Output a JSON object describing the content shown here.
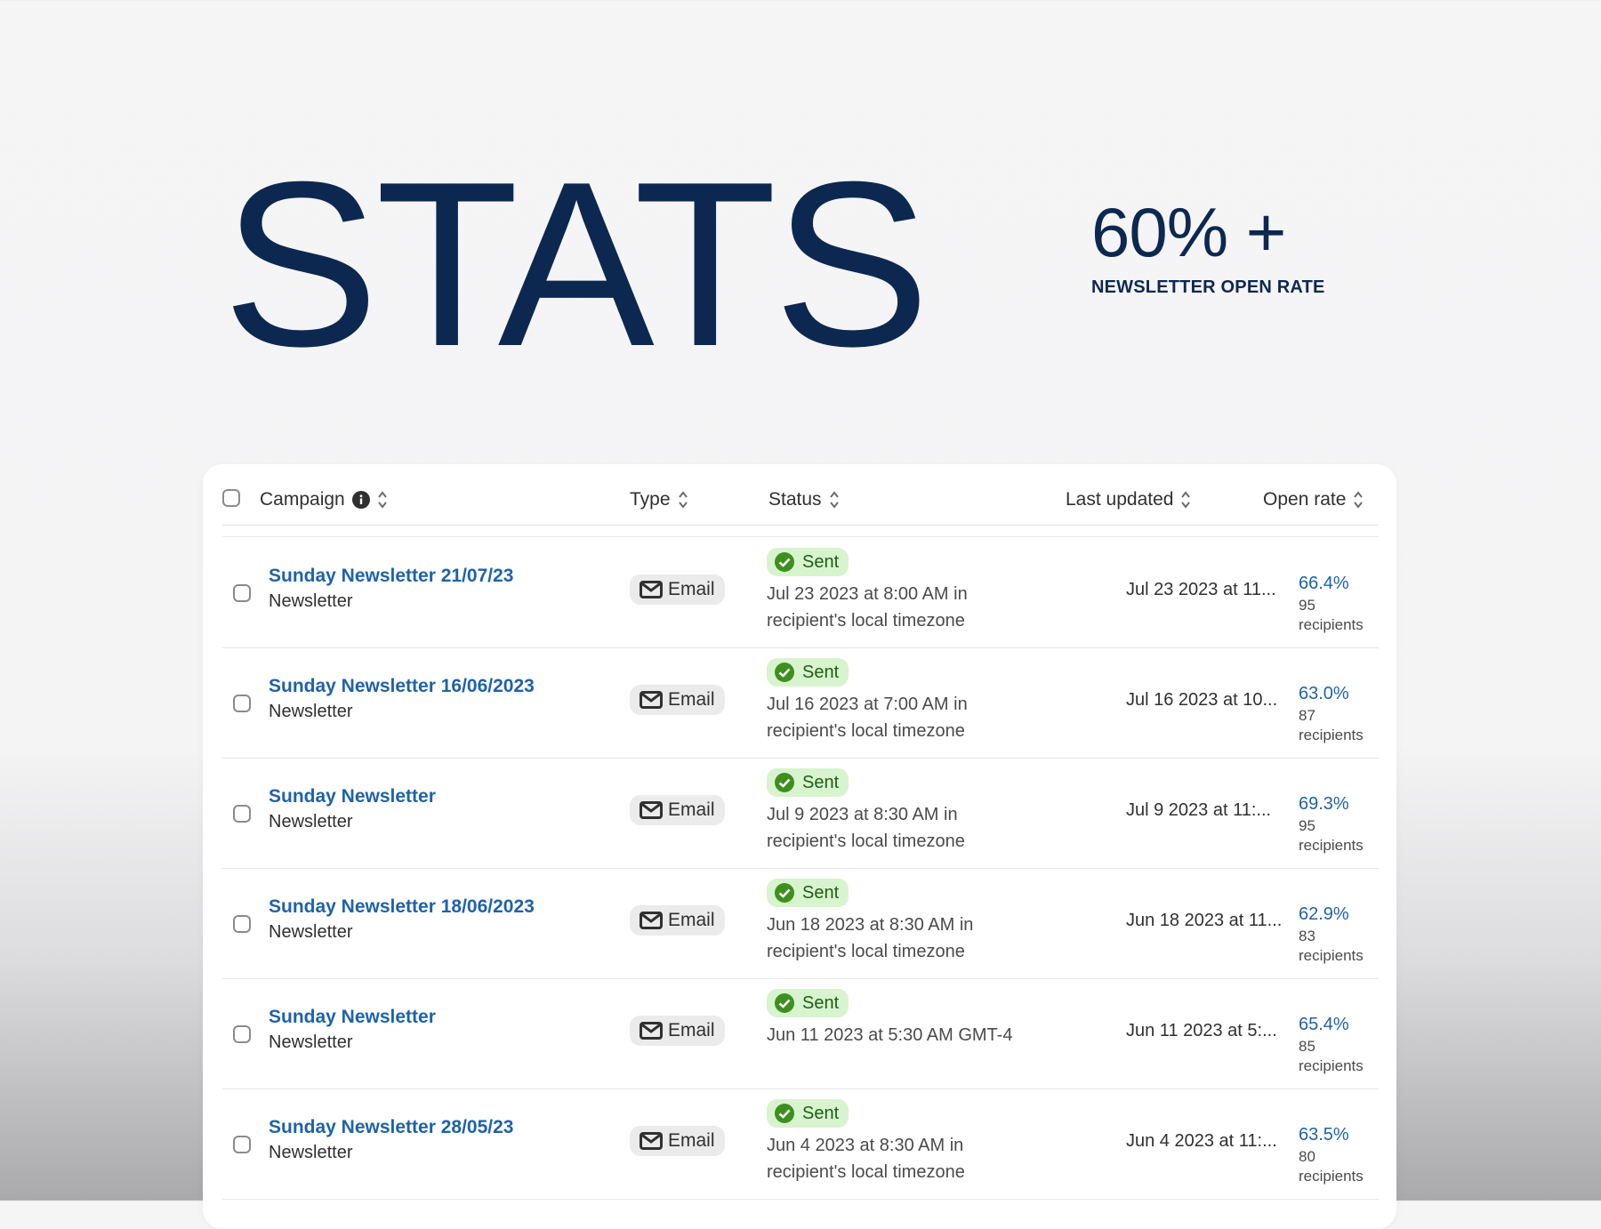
{
  "hero": {
    "title": "STATS"
  },
  "stat": {
    "value": "60% +",
    "label": "NEWSLETTER OPEN RATE"
  },
  "table": {
    "headers": {
      "campaign": "Campaign",
      "type": "Type",
      "status": "Status",
      "last_updated": "Last updated",
      "open_rate": "Open rate"
    },
    "rows": [
      {
        "title": "Sunday Newsletter 21/07/23",
        "subtitle": "Newsletter",
        "type": "Email",
        "status": "Sent",
        "status_detail": "Jul 23 2023 at 8:00 AM in recipient's local timezone",
        "last_updated": "Jul 23 2023 at 11...",
        "open_rate": "66.4%",
        "recipients": "95 recipients"
      },
      {
        "title": "Sunday Newsletter 16/06/2023",
        "subtitle": "Newsletter",
        "type": "Email",
        "status": "Sent",
        "status_detail": "Jul 16 2023 at 7:00 AM in recipient's local timezone",
        "last_updated": "Jul 16 2023 at 10...",
        "open_rate": "63.0%",
        "recipients": "87 recipients"
      },
      {
        "title": "Sunday Newsletter",
        "subtitle": "Newsletter",
        "type": "Email",
        "status": "Sent",
        "status_detail": "Jul 9 2023 at 8:30 AM in recipient's local timezone",
        "last_updated": "Jul 9 2023 at 11:...",
        "open_rate": "69.3%",
        "recipients": "95 recipients"
      },
      {
        "title": "Sunday Newsletter 18/06/2023",
        "subtitle": "Newsletter",
        "type": "Email",
        "status": "Sent",
        "status_detail": "Jun 18 2023 at 8:30 AM in recipient's local timezone",
        "last_updated": "Jun 18 2023 at 11...",
        "open_rate": "62.9%",
        "recipients": "83 recipients"
      },
      {
        "title": "Sunday Newsletter",
        "subtitle": "Newsletter",
        "type": "Email",
        "status": "Sent",
        "status_detail": "Jun 11 2023 at 5:30 AM GMT-4",
        "last_updated": "Jun 11 2023 at 5:...",
        "open_rate": "65.4%",
        "recipients": "85 recipients"
      },
      {
        "title": "Sunday Newsletter 28/05/23",
        "subtitle": "Newsletter",
        "type": "Email",
        "status": "Sent",
        "status_detail": "Jun 4 2023 at 8:30 AM in recipient's local timezone",
        "last_updated": "Jun 4 2023 at 11:...",
        "open_rate": "63.5%",
        "recipients": "80 recipients"
      }
    ]
  },
  "icons": {
    "info": "info-icon",
    "sort": "sort-icon",
    "mail": "mail-icon",
    "check": "check-circle-icon"
  },
  "colors": {
    "title": "#0d2850",
    "link": "#1f62a8",
    "sent_badge_bg": "#d7f4cf",
    "sent_badge_check": "#3f8f1f"
  }
}
